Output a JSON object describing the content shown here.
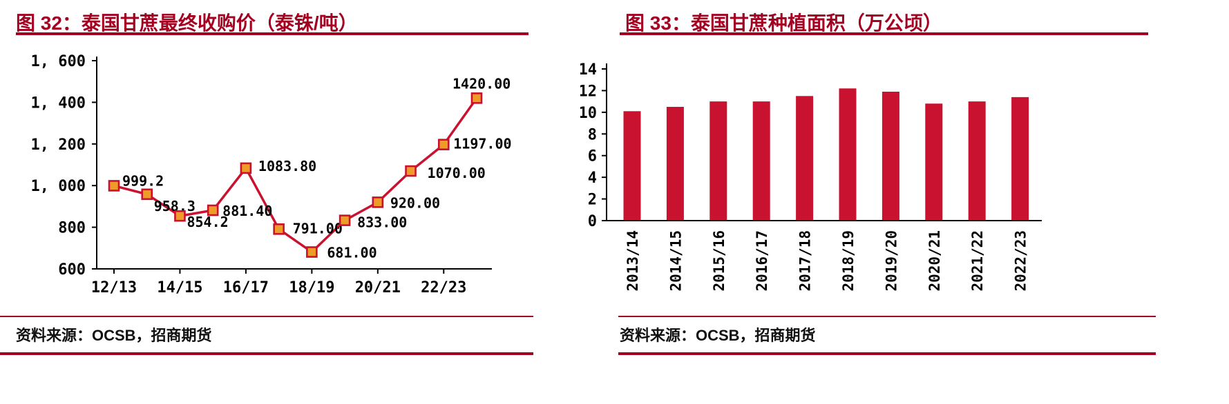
{
  "colors": {
    "accent": "#a40021",
    "line": "#c9122f",
    "marker_fill": "#ef9b2a",
    "marker_stroke": "#c9122f",
    "bar": "#c9122f",
    "axis": "#000000",
    "text": "#000000"
  },
  "chart_data": [
    {
      "type": "line",
      "title": "图 32：泰国甘蔗最终收购价（泰铢/吨）",
      "source": "资料来源：OCSB，招商期货",
      "values": [
        999.2,
        958.3,
        854.2,
        881.4,
        1083.8,
        791,
        681,
        833,
        920,
        1070,
        1197,
        1420
      ],
      "point_labels": [
        "999.2",
        "958.3",
        "854.2",
        "881.40",
        "1083.80",
        "791.00",
        "681.00",
        "833.00",
        "920.00",
        "1070.00",
        "1197.00",
        "1420.00"
      ],
      "x_tick_labels": [
        "12/13",
        "14/15",
        "16/17",
        "18/19",
        "20/21",
        "22/23"
      ],
      "x_tick_every": 2,
      "ylim": [
        600,
        1600
      ],
      "y_ticks": [
        600,
        800,
        1000,
        1200,
        1400,
        1600
      ],
      "y_tick_labels": [
        "600",
        "800",
        "1, 000",
        "1, 200",
        "1, 400",
        "1, 600"
      ],
      "grid": false
    },
    {
      "type": "bar",
      "title": "图 33：泰国甘蔗种植面积（万公顷）",
      "source": "资料来源：OCSB，招商期货",
      "categories": [
        "2013/14",
        "2014/15",
        "2015/16",
        "2016/17",
        "2017/18",
        "2018/19",
        "2019/20",
        "2020/21",
        "2021/22",
        "2022/23"
      ],
      "values": [
        10.1,
        10.5,
        11.0,
        11.0,
        11.5,
        12.2,
        11.9,
        10.8,
        11.0,
        11.4
      ],
      "ylim": [
        0,
        14
      ],
      "y_ticks": [
        0,
        2,
        4,
        6,
        8,
        10,
        12,
        14
      ],
      "y_tick_labels": [
        "0",
        "2",
        "4",
        "6",
        "8",
        "10",
        "12",
        "14"
      ],
      "grid": false
    }
  ]
}
